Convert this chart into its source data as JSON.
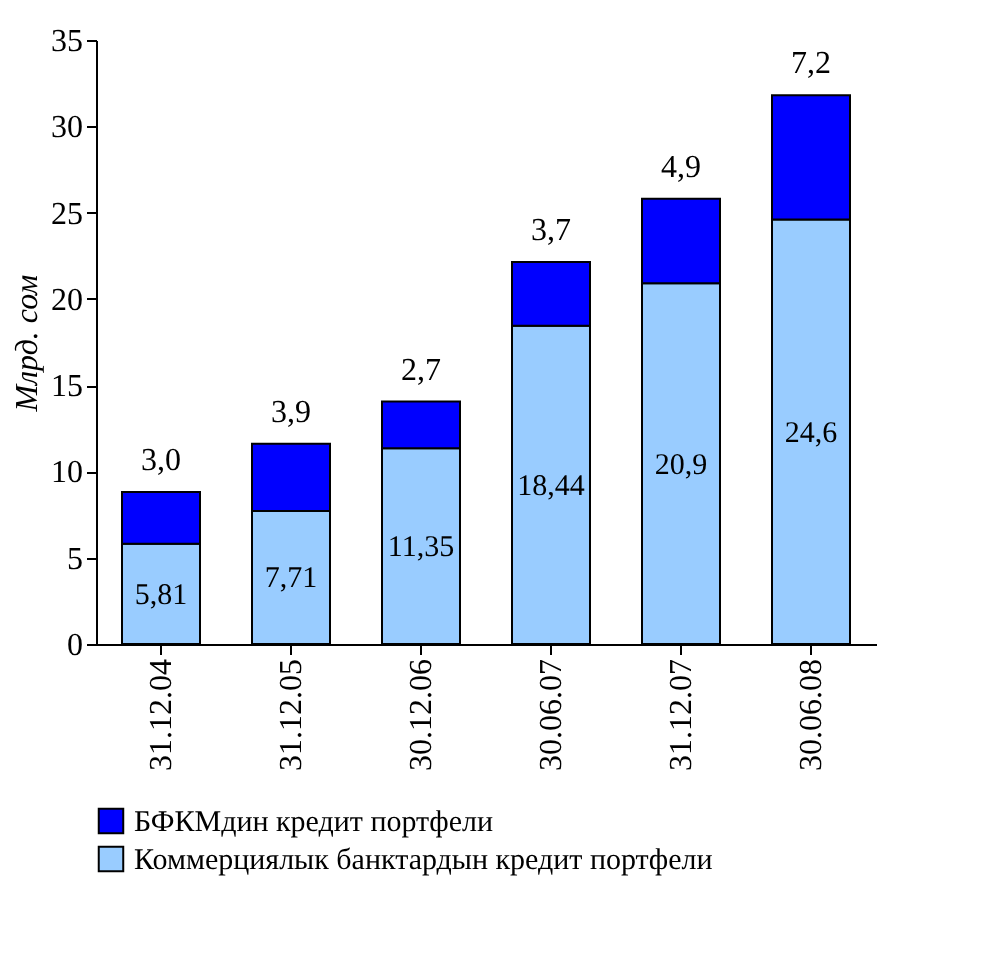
{
  "chart_data": {
    "type": "bar",
    "stacked": true,
    "ylabel": "Млрд. сом",
    "categories": [
      "31.12.04",
      "31.12.05",
      "30.12.06",
      "30.06.07",
      "31.12.07",
      "30.06.08"
    ],
    "series": [
      {
        "name": "Коммерциялык банктардын кредит портфели",
        "color": "#99ccff",
        "values": [
          5.81,
          7.71,
          11.35,
          18.44,
          20.9,
          24.6
        ],
        "value_labels": [
          "5,81",
          "7,71",
          "11,35",
          "18,44",
          "20,9",
          "24,6"
        ]
      },
      {
        "name": "БФКМдин кредит портфели",
        "color": "#0000ff",
        "values": [
          3.0,
          3.9,
          2.7,
          3.7,
          4.9,
          7.2
        ],
        "value_labels": [
          "3,0",
          "3,9",
          "2,7",
          "3,7",
          "4,9",
          "7,2"
        ]
      }
    ],
    "ylim": [
      0,
      35
    ],
    "yticks": [
      0,
      5,
      10,
      15,
      20,
      25,
      30,
      35
    ],
    "grid": false,
    "legend": "bottom"
  }
}
